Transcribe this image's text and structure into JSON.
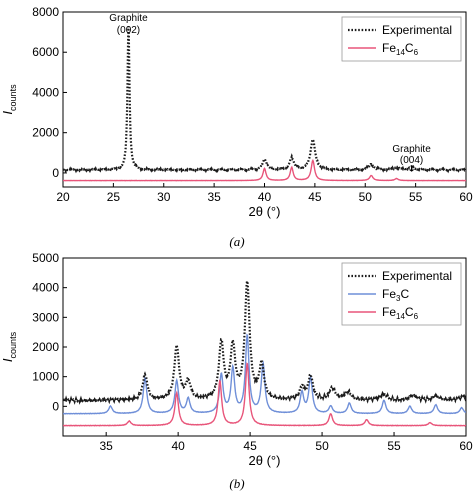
{
  "chart_data": [
    {
      "panel": "(a)",
      "type": "line",
      "xlabel": "2θ (°)",
      "ylabel_main": "I",
      "ylabel_sub": "counts",
      "xlim": [
        20,
        60
      ],
      "ylim": [
        -700,
        8000
      ],
      "xticks": [
        "20",
        "25",
        "30",
        "35",
        "40",
        "45",
        "50",
        "55",
        "60"
      ],
      "yticks": [
        "0",
        "2000",
        "4000",
        "6000",
        "8000"
      ],
      "legend": {
        "placement": "top-right",
        "entries": [
          {
            "main": "Experimental",
            "sub": "",
            "tail": "",
            "color": "#1a1a1a",
            "style": "dotted"
          },
          {
            "main": "Fe",
            "sub": "14",
            "tail": "C",
            "sub2": "6",
            "color": "#e8557a",
            "style": "solid"
          }
        ]
      },
      "annotations": [
        {
          "text_line1": "Graphite",
          "text_line2": "(002)",
          "x": 26.5
        },
        {
          "text_line1": "Graphite",
          "text_line2": "(004)",
          "x": 54.6
        }
      ],
      "series": [
        {
          "name": "Experimental",
          "color": "#1a1a1a",
          "style": "dotted",
          "baseline": 150,
          "peaks": [
            [
              26.5,
              7200,
              0.12
            ],
            [
              40.0,
              520,
              0.25
            ],
            [
              42.7,
              600,
              0.25
            ],
            [
              44.8,
              1500,
              0.28
            ],
            [
              50.6,
              280,
              0.3
            ],
            [
              53.1,
              120,
              0.3
            ],
            [
              54.6,
              150,
              0.3
            ]
          ]
        },
        {
          "name": "Fe14C6",
          "color": "#e8557a",
          "style": "solid",
          "baseline": -380,
          "peaks": [
            [
              40.0,
              600,
              0.18
            ],
            [
              42.7,
              650,
              0.18
            ],
            [
              44.8,
              1000,
              0.2
            ],
            [
              50.6,
              250,
              0.2
            ],
            [
              53.1,
              100,
              0.2
            ]
          ]
        }
      ]
    },
    {
      "panel": "(b)",
      "type": "line",
      "xlabel": "2θ (°)",
      "ylabel_main": "I",
      "ylabel_sub": "counts",
      "xlim": [
        32,
        60
      ],
      "ylim": [
        -1000,
        5000
      ],
      "xticks": [
        "35",
        "40",
        "45",
        "50",
        "55",
        "60"
      ],
      "xtick_values": [
        35,
        40,
        45,
        50,
        55,
        60
      ],
      "yticks": [
        "0",
        "1000",
        "2000",
        "3000",
        "4000",
        "5000"
      ],
      "legend": {
        "placement": "top-right",
        "entries": [
          {
            "main": "Experimental",
            "sub": "",
            "tail": "",
            "color": "#1a1a1a",
            "style": "dotted"
          },
          {
            "main": "Fe",
            "sub": "3",
            "tail": "C",
            "sub2": "",
            "color": "#6f8fd8",
            "style": "solid"
          },
          {
            "main": "Fe",
            "sub": "14",
            "tail": "C",
            "sub2": "6",
            "color": "#e8557a",
            "style": "solid"
          }
        ]
      },
      "series": [
        {
          "name": "Experimental",
          "color": "#1a1a1a",
          "style": "dotted",
          "baseline": 200,
          "peaks": [
            [
              37.7,
              850,
              0.2
            ],
            [
              39.9,
              1800,
              0.2
            ],
            [
              40.7,
              600,
              0.2
            ],
            [
              43.0,
              1900,
              0.2
            ],
            [
              43.8,
              1750,
              0.2
            ],
            [
              44.8,
              3900,
              0.2
            ],
            [
              45.8,
              1150,
              0.2
            ],
            [
              48.6,
              400,
              0.2
            ],
            [
              49.2,
              800,
              0.2
            ],
            [
              50.7,
              400,
              0.25
            ],
            [
              51.8,
              280,
              0.25
            ],
            [
              54.3,
              200,
              0.3
            ],
            [
              56.3,
              150,
              0.3
            ],
            [
              57.9,
              150,
              0.3
            ],
            [
              59.8,
              120,
              0.3
            ]
          ]
        },
        {
          "name": "Fe3C",
          "color": "#6f8fd8",
          "style": "solid",
          "baseline": -250,
          "peaks": [
            [
              35.3,
              250,
              0.15
            ],
            [
              37.7,
              1200,
              0.15
            ],
            [
              39.9,
              1100,
              0.15
            ],
            [
              40.7,
              500,
              0.15
            ],
            [
              43.0,
              1300,
              0.15
            ],
            [
              43.8,
              1500,
              0.15
            ],
            [
              44.8,
              2600,
              0.15
            ],
            [
              45.9,
              1650,
              0.15
            ],
            [
              48.6,
              700,
              0.15
            ],
            [
              49.2,
              1200,
              0.15
            ],
            [
              50.6,
              250,
              0.15
            ],
            [
              51.9,
              350,
              0.15
            ],
            [
              54.3,
              450,
              0.15
            ],
            [
              56.1,
              250,
              0.15
            ],
            [
              57.9,
              300,
              0.15
            ],
            [
              59.7,
              200,
              0.15
            ]
          ]
        },
        {
          "name": "Fe14C6",
          "color": "#e8557a",
          "style": "solid",
          "baseline": -650,
          "peaks": [
            [
              36.6,
              150,
              0.15
            ],
            [
              39.9,
              1100,
              0.15
            ],
            [
              42.9,
              1500,
              0.15
            ],
            [
              44.8,
              2100,
              0.15
            ],
            [
              50.6,
              400,
              0.15
            ],
            [
              53.1,
              200,
              0.15
            ],
            [
              57.5,
              100,
              0.15
            ]
          ]
        }
      ]
    }
  ],
  "captions": [
    "(a)",
    "(b)"
  ]
}
